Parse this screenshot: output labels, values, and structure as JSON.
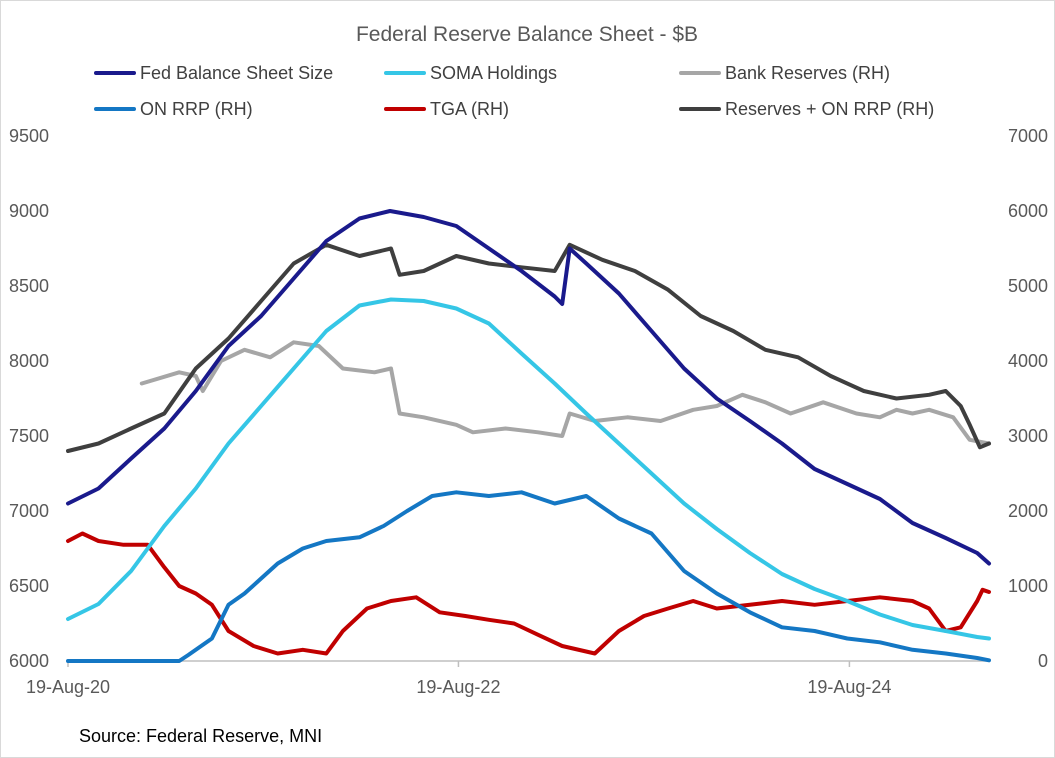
{
  "chart_data": {
    "type": "line",
    "title": "Federal Reserve Balance Sheet - $B",
    "source": "Source: Federal Reserve, MNI",
    "x_axis": {
      "type": "date",
      "range": [
        "2020-08-19",
        "2025-05-07"
      ],
      "tick_labels": [
        {
          "date": "2020-08-19",
          "label": "19-Aug-20"
        },
        {
          "date": "2022-08-19",
          "label": "19-Aug-22"
        },
        {
          "date": "2024-08-19",
          "label": "19-Aug-24"
        }
      ]
    },
    "y_left": {
      "range": [
        6000,
        9500
      ],
      "ticks": [
        6000,
        6500,
        7000,
        7500,
        8000,
        8500,
        9000,
        9500
      ]
    },
    "y_right": {
      "range": [
        0,
        7000
      ],
      "ticks": [
        0,
        1000,
        2000,
        3000,
        4000,
        5000,
        6000,
        7000
      ]
    },
    "grid": false,
    "legend_position": "top",
    "series": [
      {
        "name": "Fed Balance Sheet Size",
        "axis": "left",
        "color": "#1a1a8c",
        "points": [
          [
            "2020-08-19",
            7050
          ],
          [
            "2020-10-15",
            7150
          ],
          [
            "2020-12-15",
            7350
          ],
          [
            "2021-02-15",
            7550
          ],
          [
            "2021-04-15",
            7800
          ],
          [
            "2021-06-15",
            8100
          ],
          [
            "2021-08-15",
            8300
          ],
          [
            "2021-10-15",
            8550
          ],
          [
            "2021-12-15",
            8800
          ],
          [
            "2022-02-15",
            8950
          ],
          [
            "2022-04-13",
            9000
          ],
          [
            "2022-06-15",
            8960
          ],
          [
            "2022-08-15",
            8900
          ],
          [
            "2022-10-15",
            8750
          ],
          [
            "2022-12-15",
            8600
          ],
          [
            "2023-02-15",
            8430
          ],
          [
            "2023-03-01",
            8380
          ],
          [
            "2023-03-15",
            8750
          ],
          [
            "2023-04-15",
            8650
          ],
          [
            "2023-06-15",
            8450
          ],
          [
            "2023-08-15",
            8200
          ],
          [
            "2023-10-15",
            7950
          ],
          [
            "2023-12-15",
            7750
          ],
          [
            "2024-02-15",
            7600
          ],
          [
            "2024-04-15",
            7450
          ],
          [
            "2024-06-15",
            7280
          ],
          [
            "2024-08-15",
            7180
          ],
          [
            "2024-10-15",
            7080
          ],
          [
            "2024-12-15",
            6920
          ],
          [
            "2025-02-15",
            6820
          ],
          [
            "2025-04-15",
            6720
          ],
          [
            "2025-05-07",
            6650
          ]
        ]
      },
      {
        "name": "SOMA Holdings",
        "axis": "left",
        "color": "#35c6e6",
        "points": [
          [
            "2020-08-19",
            6280
          ],
          [
            "2020-10-15",
            6380
          ],
          [
            "2020-12-15",
            6600
          ],
          [
            "2021-02-15",
            6900
          ],
          [
            "2021-04-15",
            7150
          ],
          [
            "2021-06-15",
            7450
          ],
          [
            "2021-08-15",
            7700
          ],
          [
            "2021-10-15",
            7950
          ],
          [
            "2021-12-15",
            8200
          ],
          [
            "2022-02-15",
            8370
          ],
          [
            "2022-04-15",
            8410
          ],
          [
            "2022-06-15",
            8400
          ],
          [
            "2022-08-15",
            8350
          ],
          [
            "2022-10-15",
            8250
          ],
          [
            "2022-12-15",
            8050
          ],
          [
            "2023-02-15",
            7850
          ],
          [
            "2023-04-15",
            7650
          ],
          [
            "2023-06-15",
            7450
          ],
          [
            "2023-08-15",
            7250
          ],
          [
            "2023-10-15",
            7050
          ],
          [
            "2023-12-15",
            6880
          ],
          [
            "2024-02-15",
            6720
          ],
          [
            "2024-04-15",
            6580
          ],
          [
            "2024-06-15",
            6480
          ],
          [
            "2024-08-15",
            6400
          ],
          [
            "2024-10-15",
            6310
          ],
          [
            "2024-12-15",
            6240
          ],
          [
            "2025-02-15",
            6200
          ],
          [
            "2025-04-15",
            6160
          ],
          [
            "2025-05-07",
            6150
          ]
        ]
      },
      {
        "name": "Bank Reserves (RH)",
        "axis": "right",
        "color": "#a6a6a6",
        "points": [
          [
            "2021-01-04",
            3700
          ],
          [
            "2021-03-15",
            3850
          ],
          [
            "2021-04-15",
            3800
          ],
          [
            "2021-04-28",
            3600
          ],
          [
            "2021-06-01",
            4000
          ],
          [
            "2021-07-15",
            4150
          ],
          [
            "2021-09-01",
            4050
          ],
          [
            "2021-10-15",
            4250
          ],
          [
            "2021-12-01",
            4200
          ],
          [
            "2022-01-15",
            3900
          ],
          [
            "2022-03-15",
            3850
          ],
          [
            "2022-04-15",
            3900
          ],
          [
            "2022-05-01",
            3300
          ],
          [
            "2022-06-15",
            3250
          ],
          [
            "2022-08-15",
            3150
          ],
          [
            "2022-09-15",
            3050
          ],
          [
            "2022-11-15",
            3100
          ],
          [
            "2023-01-15",
            3050
          ],
          [
            "2023-03-01",
            3000
          ],
          [
            "2023-03-15",
            3300
          ],
          [
            "2023-05-01",
            3200
          ],
          [
            "2023-07-01",
            3250
          ],
          [
            "2023-09-01",
            3200
          ],
          [
            "2023-11-01",
            3350
          ],
          [
            "2023-12-15",
            3400
          ],
          [
            "2024-02-01",
            3550
          ],
          [
            "2024-03-15",
            3450
          ],
          [
            "2024-05-01",
            3300
          ],
          [
            "2024-07-01",
            3450
          ],
          [
            "2024-09-01",
            3300
          ],
          [
            "2024-10-15",
            3250
          ],
          [
            "2024-11-15",
            3350
          ],
          [
            "2024-12-15",
            3300
          ],
          [
            "2025-01-15",
            3350
          ],
          [
            "2025-03-01",
            3250
          ],
          [
            "2025-04-01",
            2950
          ],
          [
            "2025-05-07",
            2900
          ]
        ]
      },
      {
        "name": "ON RRP (RH)",
        "axis": "right",
        "color": "#1477c4",
        "points": [
          [
            "2020-08-19",
            0
          ],
          [
            "2021-03-15",
            0
          ],
          [
            "2021-04-01",
            80
          ],
          [
            "2021-05-15",
            300
          ],
          [
            "2021-06-15",
            750
          ],
          [
            "2021-07-15",
            900
          ],
          [
            "2021-08-15",
            1100
          ],
          [
            "2021-09-15",
            1300
          ],
          [
            "2021-11-01",
            1500
          ],
          [
            "2021-12-15",
            1600
          ],
          [
            "2022-02-15",
            1650
          ],
          [
            "2022-04-01",
            1800
          ],
          [
            "2022-05-15",
            2000
          ],
          [
            "2022-07-01",
            2200
          ],
          [
            "2022-08-15",
            2250
          ],
          [
            "2022-10-15",
            2200
          ],
          [
            "2022-12-15",
            2250
          ],
          [
            "2023-02-15",
            2100
          ],
          [
            "2023-04-15",
            2200
          ],
          [
            "2023-06-15",
            1900
          ],
          [
            "2023-08-15",
            1700
          ],
          [
            "2023-10-15",
            1200
          ],
          [
            "2023-12-15",
            900
          ],
          [
            "2024-02-15",
            650
          ],
          [
            "2024-04-15",
            450
          ],
          [
            "2024-06-15",
            400
          ],
          [
            "2024-08-15",
            300
          ],
          [
            "2024-10-15",
            250
          ],
          [
            "2024-12-15",
            150
          ],
          [
            "2025-02-15",
            100
          ],
          [
            "2025-04-15",
            40
          ],
          [
            "2025-05-07",
            10
          ]
        ]
      },
      {
        "name": "TGA (RH)",
        "axis": "right",
        "color": "#c00000",
        "points": [
          [
            "2020-08-19",
            1600
          ],
          [
            "2020-09-15",
            1700
          ],
          [
            "2020-10-15",
            1600
          ],
          [
            "2020-12-01",
            1550
          ],
          [
            "2021-01-15",
            1550
          ],
          [
            "2021-02-15",
            1250
          ],
          [
            "2021-03-15",
            1000
          ],
          [
            "2021-04-15",
            900
          ],
          [
            "2021-05-15",
            750
          ],
          [
            "2021-06-15",
            400
          ],
          [
            "2021-08-01",
            200
          ],
          [
            "2021-09-15",
            100
          ],
          [
            "2021-11-01",
            150
          ],
          [
            "2021-12-15",
            100
          ],
          [
            "2022-01-15",
            400
          ],
          [
            "2022-03-01",
            700
          ],
          [
            "2022-04-15",
            800
          ],
          [
            "2022-06-01",
            850
          ],
          [
            "2022-07-15",
            650
          ],
          [
            "2022-09-01",
            600
          ],
          [
            "2022-10-15",
            550
          ],
          [
            "2022-12-01",
            500
          ],
          [
            "2023-01-15",
            350
          ],
          [
            "2023-03-01",
            200
          ],
          [
            "2023-05-01",
            100
          ],
          [
            "2023-06-15",
            400
          ],
          [
            "2023-08-01",
            600
          ],
          [
            "2023-09-15",
            700
          ],
          [
            "2023-11-01",
            800
          ],
          [
            "2023-12-15",
            700
          ],
          [
            "2024-02-15",
            750
          ],
          [
            "2024-04-15",
            800
          ],
          [
            "2024-06-15",
            750
          ],
          [
            "2024-08-15",
            800
          ],
          [
            "2024-10-15",
            850
          ],
          [
            "2024-12-15",
            800
          ],
          [
            "2025-01-15",
            700
          ],
          [
            "2025-02-15",
            400
          ],
          [
            "2025-03-15",
            450
          ],
          [
            "2025-04-15",
            800
          ],
          [
            "2025-04-25",
            950
          ],
          [
            "2025-05-07",
            920
          ]
        ]
      },
      {
        "name": "Reserves + ON RRP (RH)",
        "axis": "right",
        "color": "#3f3f3f",
        "points": [
          [
            "2020-08-19",
            2800
          ],
          [
            "2020-10-15",
            2900
          ],
          [
            "2020-12-15",
            3100
          ],
          [
            "2021-02-15",
            3300
          ],
          [
            "2021-04-15",
            3900
          ],
          [
            "2021-06-15",
            4300
          ],
          [
            "2021-08-15",
            4800
          ],
          [
            "2021-10-15",
            5300
          ],
          [
            "2021-12-15",
            5550
          ],
          [
            "2022-02-15",
            5400
          ],
          [
            "2022-04-15",
            5500
          ],
          [
            "2022-05-01",
            5150
          ],
          [
            "2022-06-15",
            5200
          ],
          [
            "2022-08-15",
            5400
          ],
          [
            "2022-10-15",
            5300
          ],
          [
            "2022-12-15",
            5250
          ],
          [
            "2023-02-15",
            5200
          ],
          [
            "2023-03-15",
            5550
          ],
          [
            "2023-05-15",
            5350
          ],
          [
            "2023-07-15",
            5200
          ],
          [
            "2023-09-15",
            4950
          ],
          [
            "2023-11-15",
            4600
          ],
          [
            "2024-01-15",
            4400
          ],
          [
            "2024-03-15",
            4150
          ],
          [
            "2024-05-15",
            4050
          ],
          [
            "2024-07-15",
            3800
          ],
          [
            "2024-09-15",
            3600
          ],
          [
            "2024-11-15",
            3500
          ],
          [
            "2025-01-15",
            3550
          ],
          [
            "2025-02-15",
            3600
          ],
          [
            "2025-03-15",
            3400
          ],
          [
            "2025-04-01",
            3150
          ],
          [
            "2025-04-20",
            2850
          ],
          [
            "2025-05-07",
            2900
          ]
        ]
      }
    ]
  }
}
